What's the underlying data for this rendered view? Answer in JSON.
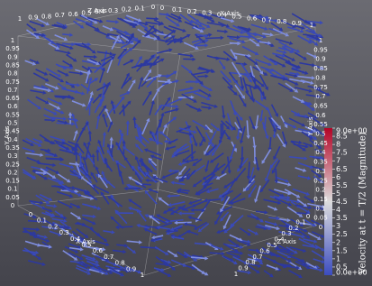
{
  "axes": {
    "x_axis": {
      "title": "X Axis",
      "ticks": [
        0,
        0.1,
        0.2,
        0.3,
        0.4,
        0.5,
        0.6,
        0.7,
        0.8,
        0.9,
        1
      ]
    },
    "y_axis": {
      "title": "Y Axis",
      "ticks": [
        0,
        0.05,
        0.1,
        0.15,
        0.2,
        0.25,
        0.3,
        0.35,
        0.4,
        0.45,
        0.5,
        0.55,
        0.6,
        0.65,
        0.7,
        0.75,
        0.8,
        0.85,
        0.9,
        0.95,
        1
      ]
    },
    "z_axis": {
      "title": "Z Axis",
      "ticks": [
        0,
        0.1,
        0.2,
        0.3,
        0.4,
        0.5,
        0.6,
        0.7,
        0.8,
        0.9,
        1
      ]
    }
  },
  "colorbar": {
    "title": "Velocity at t = T/2 (Magnitude)",
    "range": [
      0,
      9
    ],
    "ticks": [
      {
        "value": 0,
        "label": "0.0e+00"
      },
      0.5,
      1,
      1.5,
      2,
      2.5,
      3,
      3.5,
      4,
      4.5,
      5,
      5.5,
      6,
      6.5,
      7,
      7.5,
      8,
      8.5,
      {
        "value": 9,
        "label": "9.0e+00"
      }
    ]
  }
}
